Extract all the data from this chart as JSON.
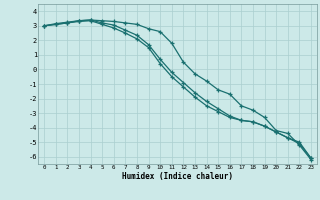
{
  "xlabel": "Humidex (Indice chaleur)",
  "xlim": [
    -0.5,
    23.5
  ],
  "ylim": [
    -6.5,
    4.5
  ],
  "yticks": [
    4,
    3,
    2,
    1,
    0,
    -1,
    -2,
    -3,
    -4,
    -5,
    -6
  ],
  "xticks": [
    0,
    1,
    2,
    3,
    4,
    5,
    6,
    7,
    8,
    9,
    10,
    11,
    12,
    13,
    14,
    15,
    16,
    17,
    18,
    19,
    20,
    21,
    22,
    23
  ],
  "bg_color": "#cce9e8",
  "grid_color": "#aacfcf",
  "line_color": "#1a7070",
  "curve1_y": [
    3.0,
    3.15,
    3.25,
    3.35,
    3.4,
    3.35,
    3.3,
    3.2,
    3.1,
    2.8,
    2.6,
    1.8,
    0.5,
    -0.3,
    -0.8,
    -1.4,
    -1.7,
    -2.5,
    -2.8,
    -3.3,
    -4.2,
    -4.4,
    -5.2,
    -6.2
  ],
  "curve2_y": [
    3.0,
    3.1,
    3.2,
    3.35,
    3.4,
    3.2,
    3.05,
    2.7,
    2.35,
    1.7,
    0.7,
    -0.2,
    -0.9,
    -1.6,
    -2.2,
    -2.7,
    -3.2,
    -3.5,
    -3.6,
    -3.9,
    -4.3,
    -4.7,
    -5.0,
    -6.1
  ],
  "curve3_y": [
    3.0,
    3.1,
    3.2,
    3.3,
    3.35,
    3.1,
    2.85,
    2.5,
    2.1,
    1.5,
    0.4,
    -0.5,
    -1.2,
    -1.9,
    -2.5,
    -2.9,
    -3.3,
    -3.5,
    -3.6,
    -3.9,
    -4.3,
    -4.7,
    -5.1,
    -6.1
  ],
  "marker_size": 3.0,
  "line_width": 0.9
}
